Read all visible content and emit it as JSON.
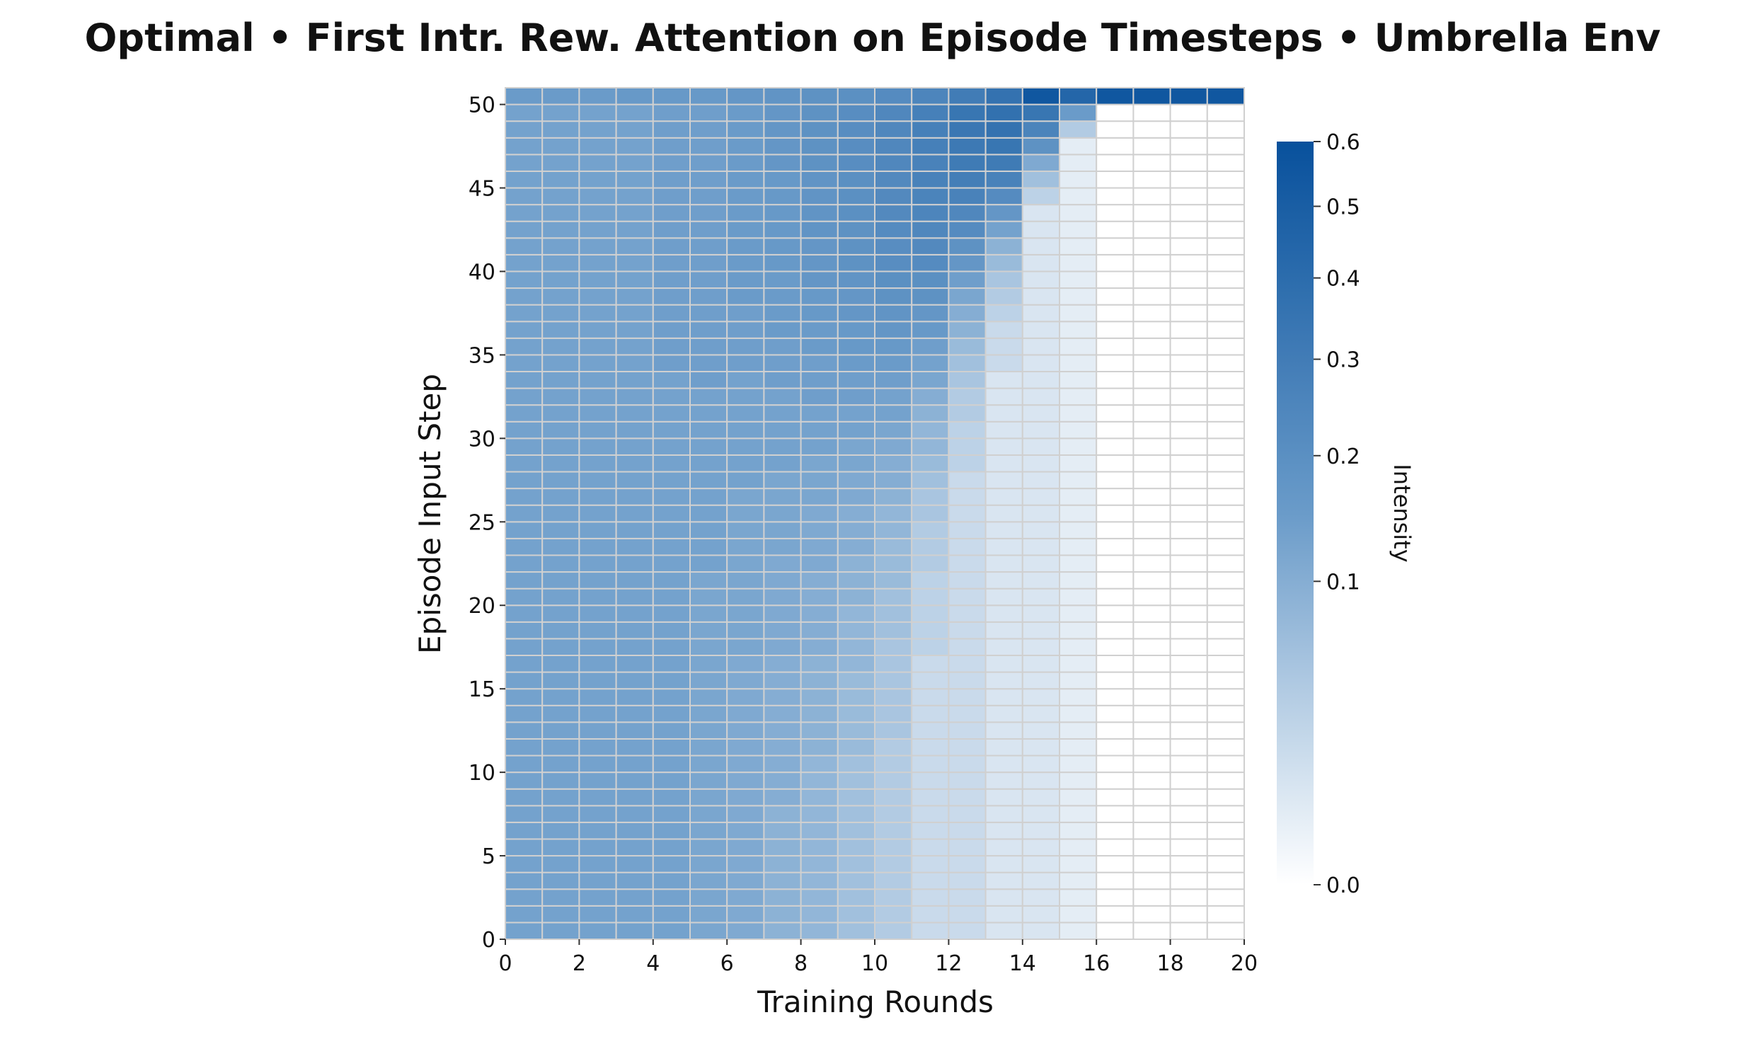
{
  "chart_data": {
    "type": "heatmap",
    "title": "Optimal • First Intr. Rew. Attention on Episode Timesteps • Umbrella Env",
    "xlabel": "Training Rounds",
    "ylabel": "Episode Input Step",
    "colorbar_label": "Intensity",
    "xlim": [
      0,
      20
    ],
    "ylim": [
      0,
      51
    ],
    "x_ticks": [
      "0",
      "2",
      "4",
      "6",
      "8",
      "10",
      "12",
      "14",
      "16",
      "18",
      "20"
    ],
    "y_ticks": [
      "0",
      "5",
      "10",
      "15",
      "20",
      "25",
      "30",
      "35",
      "40",
      "45",
      "50"
    ],
    "colorbar_ticks": [
      "0.0",
      "0.1",
      "0.2",
      "0.3",
      "0.4",
      "0.5",
      "0.6"
    ],
    "color_range": [
      0.0,
      0.6
    ],
    "color_scale": "power (gamma ~0.5)",
    "colormap": {
      "low": "#ffffff",
      "mid": "#6a9bc9",
      "high": "#08519c"
    },
    "grid_color": "#d0d0d0",
    "n_columns": 20,
    "n_rows": 51,
    "values_by_column": [
      [
        0.13,
        0.13,
        0.13,
        0.13,
        0.13,
        0.13,
        0.13,
        0.13,
        0.13,
        0.13,
        0.13,
        0.13,
        0.13,
        0.13,
        0.13,
        0.13,
        0.13,
        0.13,
        0.13,
        0.13,
        0.13,
        0.13,
        0.13,
        0.13,
        0.13,
        0.13,
        0.13,
        0.13,
        0.13,
        0.13,
        0.13,
        0.13,
        0.13,
        0.13,
        0.13,
        0.13,
        0.13,
        0.13,
        0.13,
        0.13,
        0.13,
        0.13,
        0.13,
        0.13,
        0.13,
        0.13,
        0.13,
        0.13,
        0.13,
        0.13,
        0.15
      ],
      [
        0.13,
        0.13,
        0.13,
        0.13,
        0.13,
        0.13,
        0.13,
        0.13,
        0.13,
        0.13,
        0.13,
        0.13,
        0.13,
        0.13,
        0.13,
        0.13,
        0.13,
        0.13,
        0.13,
        0.13,
        0.13,
        0.13,
        0.13,
        0.13,
        0.13,
        0.13,
        0.13,
        0.13,
        0.13,
        0.13,
        0.13,
        0.13,
        0.13,
        0.13,
        0.13,
        0.13,
        0.13,
        0.13,
        0.13,
        0.13,
        0.13,
        0.13,
        0.13,
        0.13,
        0.13,
        0.13,
        0.13,
        0.13,
        0.13,
        0.13,
        0.15
      ],
      [
        0.13,
        0.13,
        0.13,
        0.13,
        0.13,
        0.13,
        0.13,
        0.13,
        0.13,
        0.13,
        0.13,
        0.13,
        0.13,
        0.13,
        0.13,
        0.13,
        0.13,
        0.13,
        0.13,
        0.13,
        0.13,
        0.13,
        0.13,
        0.13,
        0.13,
        0.13,
        0.13,
        0.13,
        0.13,
        0.13,
        0.13,
        0.13,
        0.13,
        0.13,
        0.13,
        0.13,
        0.13,
        0.13,
        0.13,
        0.13,
        0.13,
        0.13,
        0.13,
        0.13,
        0.13,
        0.13,
        0.13,
        0.13,
        0.13,
        0.13,
        0.15
      ],
      [
        0.13,
        0.13,
        0.13,
        0.13,
        0.13,
        0.13,
        0.13,
        0.13,
        0.13,
        0.13,
        0.13,
        0.13,
        0.13,
        0.13,
        0.13,
        0.13,
        0.13,
        0.13,
        0.13,
        0.13,
        0.13,
        0.13,
        0.13,
        0.13,
        0.13,
        0.13,
        0.13,
        0.13,
        0.13,
        0.13,
        0.13,
        0.13,
        0.13,
        0.13,
        0.13,
        0.13,
        0.13,
        0.13,
        0.13,
        0.13,
        0.13,
        0.13,
        0.13,
        0.13,
        0.13,
        0.13,
        0.13,
        0.13,
        0.13,
        0.13,
        0.16
      ],
      [
        0.13,
        0.13,
        0.13,
        0.13,
        0.13,
        0.13,
        0.13,
        0.13,
        0.13,
        0.13,
        0.13,
        0.13,
        0.13,
        0.13,
        0.13,
        0.13,
        0.13,
        0.13,
        0.13,
        0.13,
        0.13,
        0.13,
        0.13,
        0.13,
        0.13,
        0.13,
        0.13,
        0.13,
        0.13,
        0.13,
        0.13,
        0.13,
        0.13,
        0.13,
        0.14,
        0.14,
        0.14,
        0.14,
        0.14,
        0.14,
        0.14,
        0.14,
        0.14,
        0.14,
        0.14,
        0.14,
        0.14,
        0.14,
        0.14,
        0.14,
        0.16
      ],
      [
        0.12,
        0.12,
        0.12,
        0.12,
        0.12,
        0.12,
        0.12,
        0.12,
        0.12,
        0.12,
        0.12,
        0.12,
        0.12,
        0.12,
        0.12,
        0.12,
        0.12,
        0.12,
        0.12,
        0.12,
        0.12,
        0.12,
        0.13,
        0.13,
        0.13,
        0.13,
        0.13,
        0.13,
        0.13,
        0.13,
        0.13,
        0.13,
        0.13,
        0.14,
        0.14,
        0.14,
        0.14,
        0.14,
        0.14,
        0.14,
        0.14,
        0.14,
        0.14,
        0.14,
        0.14,
        0.14,
        0.14,
        0.14,
        0.14,
        0.14,
        0.16
      ],
      [
        0.11,
        0.11,
        0.11,
        0.11,
        0.11,
        0.11,
        0.11,
        0.11,
        0.11,
        0.11,
        0.11,
        0.11,
        0.11,
        0.11,
        0.11,
        0.11,
        0.11,
        0.12,
        0.12,
        0.12,
        0.12,
        0.12,
        0.12,
        0.12,
        0.12,
        0.12,
        0.12,
        0.13,
        0.13,
        0.13,
        0.13,
        0.13,
        0.13,
        0.13,
        0.14,
        0.14,
        0.14,
        0.14,
        0.15,
        0.15,
        0.15,
        0.15,
        0.15,
        0.15,
        0.15,
        0.15,
        0.15,
        0.15,
        0.15,
        0.15,
        0.17
      ],
      [
        0.09,
        0.09,
        0.09,
        0.09,
        0.09,
        0.09,
        0.09,
        0.09,
        0.1,
        0.1,
        0.1,
        0.1,
        0.1,
        0.1,
        0.1,
        0.1,
        0.1,
        0.11,
        0.11,
        0.11,
        0.11,
        0.11,
        0.11,
        0.12,
        0.12,
        0.12,
        0.12,
        0.12,
        0.13,
        0.13,
        0.13,
        0.13,
        0.13,
        0.14,
        0.14,
        0.14,
        0.15,
        0.15,
        0.15,
        0.15,
        0.16,
        0.16,
        0.16,
        0.16,
        0.16,
        0.16,
        0.17,
        0.17,
        0.17,
        0.17,
        0.18
      ],
      [
        0.08,
        0.08,
        0.08,
        0.08,
        0.08,
        0.08,
        0.08,
        0.08,
        0.08,
        0.08,
        0.08,
        0.09,
        0.09,
        0.09,
        0.09,
        0.09,
        0.09,
        0.1,
        0.1,
        0.1,
        0.1,
        0.1,
        0.11,
        0.11,
        0.11,
        0.11,
        0.12,
        0.12,
        0.12,
        0.13,
        0.13,
        0.13,
        0.14,
        0.14,
        0.14,
        0.15,
        0.15,
        0.16,
        0.16,
        0.17,
        0.17,
        0.17,
        0.18,
        0.18,
        0.18,
        0.18,
        0.19,
        0.19,
        0.19,
        0.19,
        0.19
      ],
      [
        0.06,
        0.06,
        0.06,
        0.06,
        0.06,
        0.06,
        0.06,
        0.06,
        0.06,
        0.06,
        0.06,
        0.07,
        0.07,
        0.07,
        0.07,
        0.07,
        0.08,
        0.08,
        0.08,
        0.08,
        0.09,
        0.09,
        0.09,
        0.1,
        0.1,
        0.1,
        0.11,
        0.11,
        0.12,
        0.12,
        0.13,
        0.13,
        0.14,
        0.14,
        0.15,
        0.16,
        0.16,
        0.17,
        0.17,
        0.18,
        0.19,
        0.19,
        0.19,
        0.2,
        0.2,
        0.2,
        0.21,
        0.21,
        0.21,
        0.21,
        0.2
      ],
      [
        0.04,
        0.04,
        0.04,
        0.04,
        0.04,
        0.04,
        0.04,
        0.04,
        0.04,
        0.04,
        0.04,
        0.04,
        0.05,
        0.05,
        0.05,
        0.05,
        0.05,
        0.05,
        0.06,
        0.06,
        0.06,
        0.07,
        0.07,
        0.07,
        0.08,
        0.08,
        0.09,
        0.1,
        0.1,
        0.11,
        0.12,
        0.13,
        0.13,
        0.14,
        0.15,
        0.16,
        0.17,
        0.18,
        0.19,
        0.2,
        0.21,
        0.21,
        0.22,
        0.23,
        0.23,
        0.23,
        0.24,
        0.24,
        0.24,
        0.24,
        0.22
      ],
      [
        0.02,
        0.02,
        0.02,
        0.02,
        0.02,
        0.02,
        0.02,
        0.02,
        0.02,
        0.02,
        0.02,
        0.02,
        0.02,
        0.02,
        0.02,
        0.02,
        0.02,
        0.03,
        0.03,
        0.03,
        0.03,
        0.03,
        0.04,
        0.04,
        0.04,
        0.05,
        0.05,
        0.06,
        0.07,
        0.08,
        0.08,
        0.09,
        0.1,
        0.12,
        0.13,
        0.14,
        0.16,
        0.17,
        0.19,
        0.2,
        0.22,
        0.23,
        0.24,
        0.25,
        0.26,
        0.27,
        0.27,
        0.28,
        0.28,
        0.28,
        0.25
      ],
      [
        0.02,
        0.02,
        0.02,
        0.02,
        0.02,
        0.02,
        0.02,
        0.02,
        0.02,
        0.02,
        0.02,
        0.02,
        0.02,
        0.02,
        0.02,
        0.02,
        0.02,
        0.02,
        0.02,
        0.02,
        0.02,
        0.02,
        0.02,
        0.02,
        0.02,
        0.02,
        0.02,
        0.02,
        0.03,
        0.03,
        0.03,
        0.04,
        0.04,
        0.05,
        0.06,
        0.07,
        0.09,
        0.1,
        0.12,
        0.14,
        0.17,
        0.19,
        0.22,
        0.24,
        0.27,
        0.29,
        0.31,
        0.32,
        0.33,
        0.34,
        0.3
      ],
      [
        0.01,
        0.01,
        0.01,
        0.01,
        0.01,
        0.01,
        0.01,
        0.01,
        0.01,
        0.01,
        0.01,
        0.01,
        0.01,
        0.01,
        0.01,
        0.01,
        0.01,
        0.01,
        0.01,
        0.01,
        0.01,
        0.01,
        0.01,
        0.01,
        0.01,
        0.01,
        0.01,
        0.01,
        0.01,
        0.01,
        0.01,
        0.01,
        0.01,
        0.01,
        0.02,
        0.02,
        0.02,
        0.03,
        0.04,
        0.05,
        0.07,
        0.09,
        0.13,
        0.17,
        0.22,
        0.27,
        0.31,
        0.34,
        0.36,
        0.37,
        0.36
      ],
      [
        0.01,
        0.01,
        0.01,
        0.01,
        0.01,
        0.01,
        0.01,
        0.01,
        0.01,
        0.01,
        0.01,
        0.01,
        0.01,
        0.01,
        0.01,
        0.01,
        0.01,
        0.01,
        0.01,
        0.01,
        0.01,
        0.01,
        0.01,
        0.01,
        0.01,
        0.01,
        0.01,
        0.01,
        0.01,
        0.01,
        0.01,
        0.01,
        0.01,
        0.01,
        0.01,
        0.01,
        0.01,
        0.01,
        0.01,
        0.01,
        0.01,
        0.01,
        0.01,
        0.01,
        0.03,
        0.06,
        0.11,
        0.19,
        0.26,
        0.34,
        0.55
      ],
      [
        0.005,
        0.005,
        0.005,
        0.005,
        0.005,
        0.005,
        0.005,
        0.005,
        0.005,
        0.005,
        0.005,
        0.005,
        0.005,
        0.005,
        0.005,
        0.005,
        0.005,
        0.005,
        0.005,
        0.005,
        0.005,
        0.005,
        0.005,
        0.005,
        0.005,
        0.005,
        0.005,
        0.005,
        0.005,
        0.005,
        0.005,
        0.005,
        0.005,
        0.005,
        0.005,
        0.005,
        0.005,
        0.005,
        0.005,
        0.005,
        0.005,
        0.005,
        0.005,
        0.005,
        0.005,
        0.005,
        0.005,
        0.005,
        0.04,
        0.15,
        0.44
      ],
      [
        0.0,
        0.0,
        0.0,
        0.0,
        0.0,
        0.0,
        0.0,
        0.0,
        0.0,
        0.0,
        0.0,
        0.0,
        0.0,
        0.0,
        0.0,
        0.0,
        0.0,
        0.0,
        0.0,
        0.0,
        0.0,
        0.0,
        0.0,
        0.0,
        0.0,
        0.0,
        0.0,
        0.0,
        0.0,
        0.0,
        0.0,
        0.0,
        0.0,
        0.0,
        0.0,
        0.0,
        0.0,
        0.0,
        0.0,
        0.0,
        0.0,
        0.0,
        0.0,
        0.0,
        0.0,
        0.0,
        0.0,
        0.0,
        0.0,
        0.0,
        0.55
      ],
      [
        0.0,
        0.0,
        0.0,
        0.0,
        0.0,
        0.0,
        0.0,
        0.0,
        0.0,
        0.0,
        0.0,
        0.0,
        0.0,
        0.0,
        0.0,
        0.0,
        0.0,
        0.0,
        0.0,
        0.0,
        0.0,
        0.0,
        0.0,
        0.0,
        0.0,
        0.0,
        0.0,
        0.0,
        0.0,
        0.0,
        0.0,
        0.0,
        0.0,
        0.0,
        0.0,
        0.0,
        0.0,
        0.0,
        0.0,
        0.0,
        0.0,
        0.0,
        0.0,
        0.0,
        0.0,
        0.0,
        0.0,
        0.0,
        0.0,
        0.0,
        0.55
      ],
      [
        0.0,
        0.0,
        0.0,
        0.0,
        0.0,
        0.0,
        0.0,
        0.0,
        0.0,
        0.0,
        0.0,
        0.0,
        0.0,
        0.0,
        0.0,
        0.0,
        0.0,
        0.0,
        0.0,
        0.0,
        0.0,
        0.0,
        0.0,
        0.0,
        0.0,
        0.0,
        0.0,
        0.0,
        0.0,
        0.0,
        0.0,
        0.0,
        0.0,
        0.0,
        0.0,
        0.0,
        0.0,
        0.0,
        0.0,
        0.0,
        0.0,
        0.0,
        0.0,
        0.0,
        0.0,
        0.0,
        0.0,
        0.0,
        0.0,
        0.0,
        0.55
      ],
      [
        0.0,
        0.0,
        0.0,
        0.0,
        0.0,
        0.0,
        0.0,
        0.0,
        0.0,
        0.0,
        0.0,
        0.0,
        0.0,
        0.0,
        0.0,
        0.0,
        0.0,
        0.0,
        0.0,
        0.0,
        0.0,
        0.0,
        0.0,
        0.0,
        0.0,
        0.0,
        0.0,
        0.0,
        0.0,
        0.0,
        0.0,
        0.0,
        0.0,
        0.0,
        0.0,
        0.0,
        0.0,
        0.0,
        0.0,
        0.0,
        0.0,
        0.0,
        0.0,
        0.0,
        0.0,
        0.0,
        0.0,
        0.0,
        0.0,
        0.0,
        0.55
      ]
    ]
  }
}
